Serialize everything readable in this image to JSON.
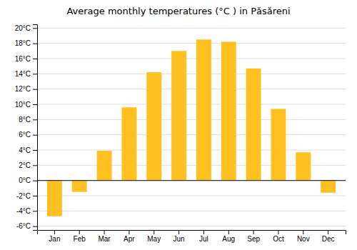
{
  "chart_data": {
    "type": "bar",
    "title": "Average monthly temperatures (°C ) in Păsăreni",
    "categories": [
      "Jan",
      "Feb",
      "Mar",
      "Apr",
      "May",
      "Jun",
      "Jul",
      "Aug",
      "Sep",
      "Oct",
      "Nov",
      "Dec"
    ],
    "values": [
      -4.7,
      -1.5,
      3.9,
      9.6,
      14.2,
      17.0,
      18.5,
      18.2,
      14.7,
      9.4,
      3.7,
      -1.6
    ],
    "color": "#FFC020",
    "ylim": [
      -6.5,
      20.5
    ],
    "yticks": [
      {
        "value": -6,
        "label": "-6°C"
      },
      {
        "value": -4,
        "label": "-4°C"
      },
      {
        "value": -2,
        "label": "-2°C"
      },
      {
        "value": 0,
        "label": "0°C"
      },
      {
        "value": 2,
        "label": "2°C"
      },
      {
        "value": 4,
        "label": "4°C"
      },
      {
        "value": 6,
        "label": "6°C"
      },
      {
        "value": 8,
        "label": "8°C"
      },
      {
        "value": 10,
        "label": "10°C"
      },
      {
        "value": 12,
        "label": "12°C"
      },
      {
        "value": 14,
        "label": "14°C"
      },
      {
        "value": 16,
        "label": "16°C"
      },
      {
        "value": 18,
        "label": "18°C"
      },
      {
        "value": 20,
        "label": "20°C"
      }
    ],
    "grid": true
  }
}
